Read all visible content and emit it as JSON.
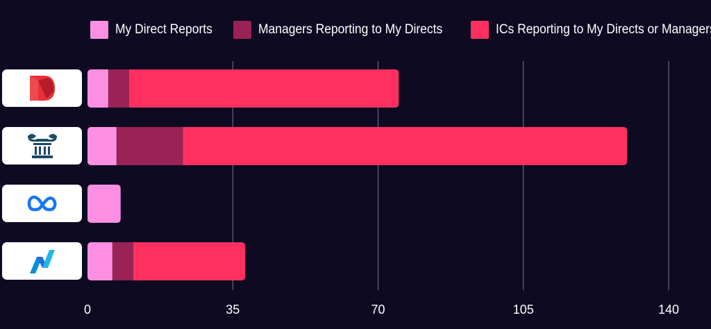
{
  "colors": {
    "background": "#0e0a22",
    "gridline": "#7a7590",
    "axis_text": "#ffffff"
  },
  "chart_data": {
    "type": "bar",
    "orientation": "horizontal",
    "stacked": true,
    "categories": [
      "dropbox-logo",
      "pillar-logo",
      "meta-logo",
      "nasdaq-logo"
    ],
    "series": [
      {
        "name": "My Direct Reports",
        "color": "#fd8fe3",
        "values": [
          5,
          7,
          8,
          6
        ]
      },
      {
        "name": "Managers Reporting to My Directs",
        "color": "#9a2255",
        "values": [
          5,
          16,
          0,
          5
        ]
      },
      {
        "name": "ICs Reporting to My Directs or Managers",
        "color": "#ff3060",
        "values": [
          65,
          107,
          0,
          27
        ]
      }
    ],
    "xlim": [
      0,
      140
    ],
    "xticks": [
      "0",
      "35",
      "70",
      "105",
      "140"
    ],
    "grid": true,
    "legend": "top"
  },
  "logos": [
    {
      "icon": "dropbox-d-logo-icon"
    },
    {
      "icon": "pillar-column-logo-icon"
    },
    {
      "icon": "meta-infinity-logo-icon"
    },
    {
      "icon": "nasdaq-logo-icon"
    }
  ]
}
